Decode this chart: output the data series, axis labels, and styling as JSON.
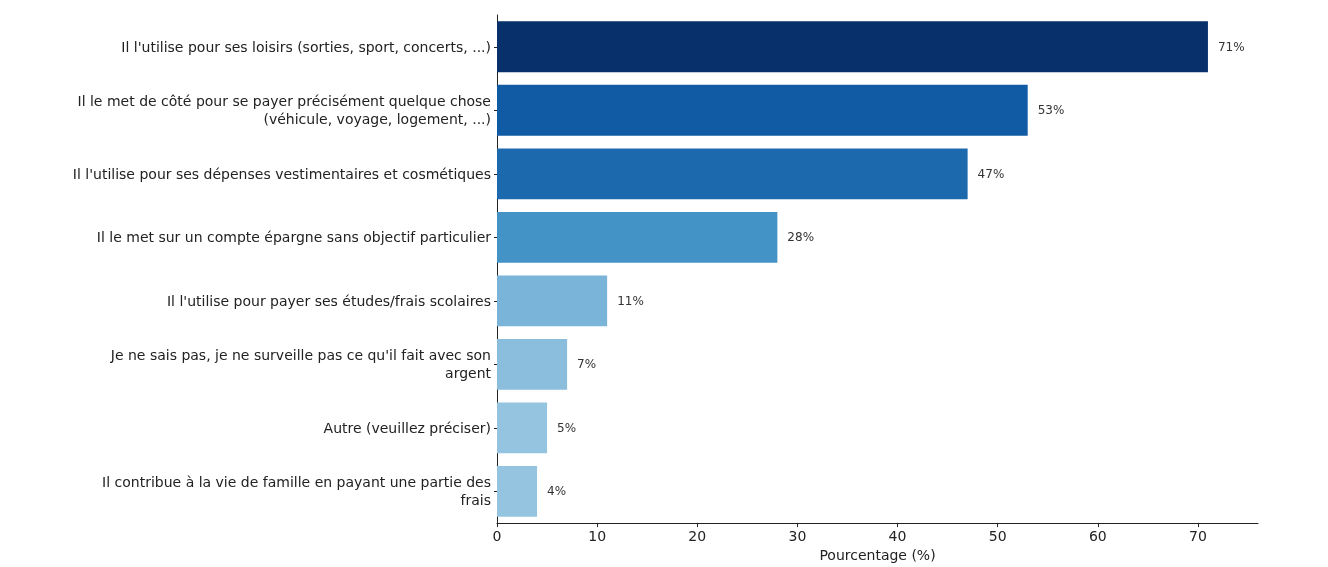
{
  "chart_data": {
    "type": "bar",
    "orientation": "horizontal",
    "xlabel": "Pourcentage (%)",
    "categories": [
      "Il l'utilise pour ses loisirs (sorties, sport, concerts, ...)",
      "Il le met de côté pour se payer précisément quelque chose\n(véhicule, voyage, logement, ...)",
      "Il l'utilise pour ses dépenses vestimentaires et cosmétiques",
      "Il le met sur un compte épargne sans objectif particulier",
      "Il l'utilise pour payer ses études/frais scolaires",
      "Je ne sais pas, je ne surveille pas ce qu'il fait avec son\nargent",
      "Autre (veuillez préciser)",
      "Il contribue à la vie de famille en payant une partie des\nfrais"
    ],
    "values": [
      71,
      53,
      47,
      28,
      11,
      7,
      5,
      4
    ],
    "value_labels": [
      "71%",
      "53%",
      "47%",
      "28%",
      "11%",
      "7%",
      "5%",
      "4%"
    ],
    "colors": [
      "#08306b",
      "#105ba4",
      "#1c6aad",
      "#4493c7",
      "#7ab5d9",
      "#8abedc",
      "#94c4df",
      "#94c4df"
    ],
    "xlim": [
      0,
      76
    ],
    "xticks": [
      0,
      10,
      20,
      30,
      40,
      50,
      60,
      70
    ]
  }
}
